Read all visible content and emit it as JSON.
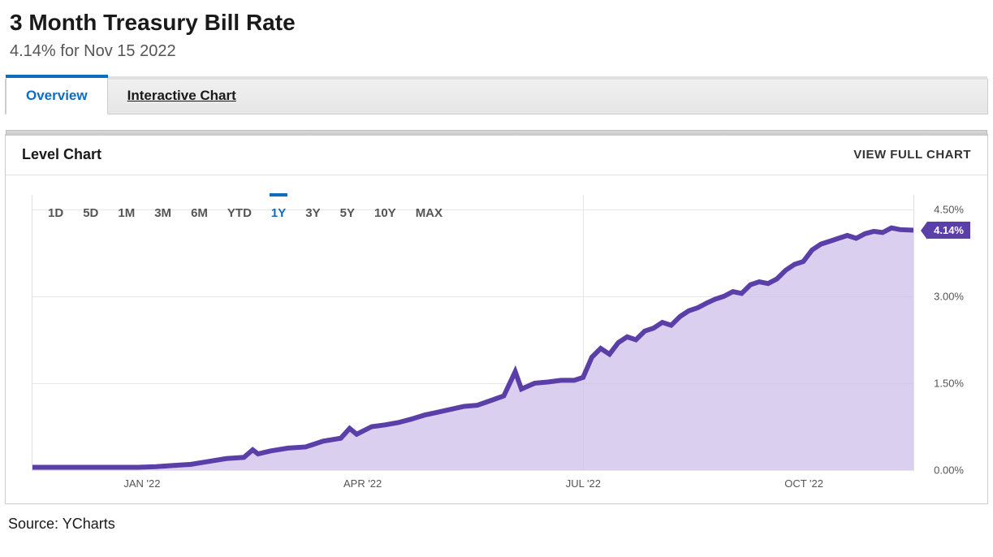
{
  "header": {
    "title": "3 Month Treasury Bill Rate",
    "subtitle": "4.14% for Nov 15 2022"
  },
  "tabs": {
    "items": [
      {
        "label": "Overview",
        "active": true
      },
      {
        "label": "Interactive Chart",
        "active": false
      }
    ]
  },
  "chart": {
    "panel_title": "Level Chart",
    "view_full_label": "VIEW FULL CHART",
    "ranges": [
      {
        "label": "1D",
        "active": false
      },
      {
        "label": "5D",
        "active": false
      },
      {
        "label": "1M",
        "active": false
      },
      {
        "label": "3M",
        "active": false
      },
      {
        "label": "6M",
        "active": false
      },
      {
        "label": "YTD",
        "active": false
      },
      {
        "label": "1Y",
        "active": true
      },
      {
        "label": "3Y",
        "active": false
      },
      {
        "label": "5Y",
        "active": false
      },
      {
        "label": "10Y",
        "active": false
      },
      {
        "label": "MAX",
        "active": false
      }
    ],
    "type": "area",
    "line_color": "#5b3fa8",
    "fill_color": "#cdbfea",
    "fill_opacity": 0.75,
    "line_width": 2,
    "background_color": "#ffffff",
    "grid_color": "#e6e6e6",
    "y_axis": {
      "min": 0.0,
      "max": 4.75,
      "ticks": [
        0.0,
        1.5,
        3.0,
        4.5
      ],
      "tick_labels": [
        "0.00%",
        "1.50%",
        "3.00%",
        "4.50%"
      ],
      "label_fontsize": 13,
      "label_color": "#555555"
    },
    "x_axis": {
      "ticks": [
        0.125,
        0.375,
        0.625,
        0.875
      ],
      "tick_labels": [
        "JAN '22",
        "APR '22",
        "JUL '22",
        "OCT '22"
      ],
      "label_fontsize": 13,
      "label_color": "#555555"
    },
    "mid_vertical": 0.625,
    "current_badge": {
      "text": "4.14%",
      "bg": "#5b3fa8",
      "fg": "#ffffff"
    },
    "series": [
      {
        "x": 0.0,
        "y": 0.05
      },
      {
        "x": 0.02,
        "y": 0.05
      },
      {
        "x": 0.04,
        "y": 0.05
      },
      {
        "x": 0.06,
        "y": 0.05
      },
      {
        "x": 0.08,
        "y": 0.05
      },
      {
        "x": 0.1,
        "y": 0.05
      },
      {
        "x": 0.12,
        "y": 0.05
      },
      {
        "x": 0.14,
        "y": 0.06
      },
      {
        "x": 0.16,
        "y": 0.08
      },
      {
        "x": 0.18,
        "y": 0.1
      },
      {
        "x": 0.2,
        "y": 0.15
      },
      {
        "x": 0.22,
        "y": 0.2
      },
      {
        "x": 0.24,
        "y": 0.22
      },
      {
        "x": 0.25,
        "y": 0.35
      },
      {
        "x": 0.256,
        "y": 0.28
      },
      {
        "x": 0.27,
        "y": 0.33
      },
      {
        "x": 0.29,
        "y": 0.38
      },
      {
        "x": 0.31,
        "y": 0.4
      },
      {
        "x": 0.33,
        "y": 0.5
      },
      {
        "x": 0.35,
        "y": 0.55
      },
      {
        "x": 0.36,
        "y": 0.72
      },
      {
        "x": 0.368,
        "y": 0.62
      },
      {
        "x": 0.385,
        "y": 0.75
      },
      {
        "x": 0.4,
        "y": 0.78
      },
      {
        "x": 0.415,
        "y": 0.82
      },
      {
        "x": 0.43,
        "y": 0.88
      },
      {
        "x": 0.445,
        "y": 0.95
      },
      {
        "x": 0.46,
        "y": 1.0
      },
      {
        "x": 0.475,
        "y": 1.05
      },
      {
        "x": 0.49,
        "y": 1.1
      },
      {
        "x": 0.505,
        "y": 1.12
      },
      {
        "x": 0.52,
        "y": 1.2
      },
      {
        "x": 0.535,
        "y": 1.28
      },
      {
        "x": 0.548,
        "y": 1.7
      },
      {
        "x": 0.555,
        "y": 1.4
      },
      {
        "x": 0.57,
        "y": 1.5
      },
      {
        "x": 0.585,
        "y": 1.52
      },
      {
        "x": 0.6,
        "y": 1.55
      },
      {
        "x": 0.615,
        "y": 1.55
      },
      {
        "x": 0.625,
        "y": 1.6
      },
      {
        "x": 0.635,
        "y": 1.95
      },
      {
        "x": 0.645,
        "y": 2.1
      },
      {
        "x": 0.655,
        "y": 2.0
      },
      {
        "x": 0.665,
        "y": 2.2
      },
      {
        "x": 0.675,
        "y": 2.3
      },
      {
        "x": 0.685,
        "y": 2.25
      },
      {
        "x": 0.695,
        "y": 2.4
      },
      {
        "x": 0.705,
        "y": 2.45
      },
      {
        "x": 0.715,
        "y": 2.55
      },
      {
        "x": 0.725,
        "y": 2.5
      },
      {
        "x": 0.735,
        "y": 2.65
      },
      {
        "x": 0.745,
        "y": 2.75
      },
      {
        "x": 0.755,
        "y": 2.8
      },
      {
        "x": 0.765,
        "y": 2.88
      },
      {
        "x": 0.775,
        "y": 2.95
      },
      {
        "x": 0.785,
        "y": 3.0
      },
      {
        "x": 0.795,
        "y": 3.08
      },
      {
        "x": 0.805,
        "y": 3.05
      },
      {
        "x": 0.815,
        "y": 3.2
      },
      {
        "x": 0.825,
        "y": 3.25
      },
      {
        "x": 0.835,
        "y": 3.22
      },
      {
        "x": 0.845,
        "y": 3.3
      },
      {
        "x": 0.855,
        "y": 3.45
      },
      {
        "x": 0.865,
        "y": 3.55
      },
      {
        "x": 0.875,
        "y": 3.6
      },
      {
        "x": 0.885,
        "y": 3.8
      },
      {
        "x": 0.895,
        "y": 3.9
      },
      {
        "x": 0.905,
        "y": 3.95
      },
      {
        "x": 0.915,
        "y": 4.0
      },
      {
        "x": 0.925,
        "y": 4.05
      },
      {
        "x": 0.935,
        "y": 4.0
      },
      {
        "x": 0.945,
        "y": 4.08
      },
      {
        "x": 0.955,
        "y": 4.12
      },
      {
        "x": 0.965,
        "y": 4.1
      },
      {
        "x": 0.975,
        "y": 4.18
      },
      {
        "x": 0.985,
        "y": 4.15
      },
      {
        "x": 1.0,
        "y": 4.14
      }
    ]
  },
  "source": {
    "text": "Source: YCharts"
  }
}
